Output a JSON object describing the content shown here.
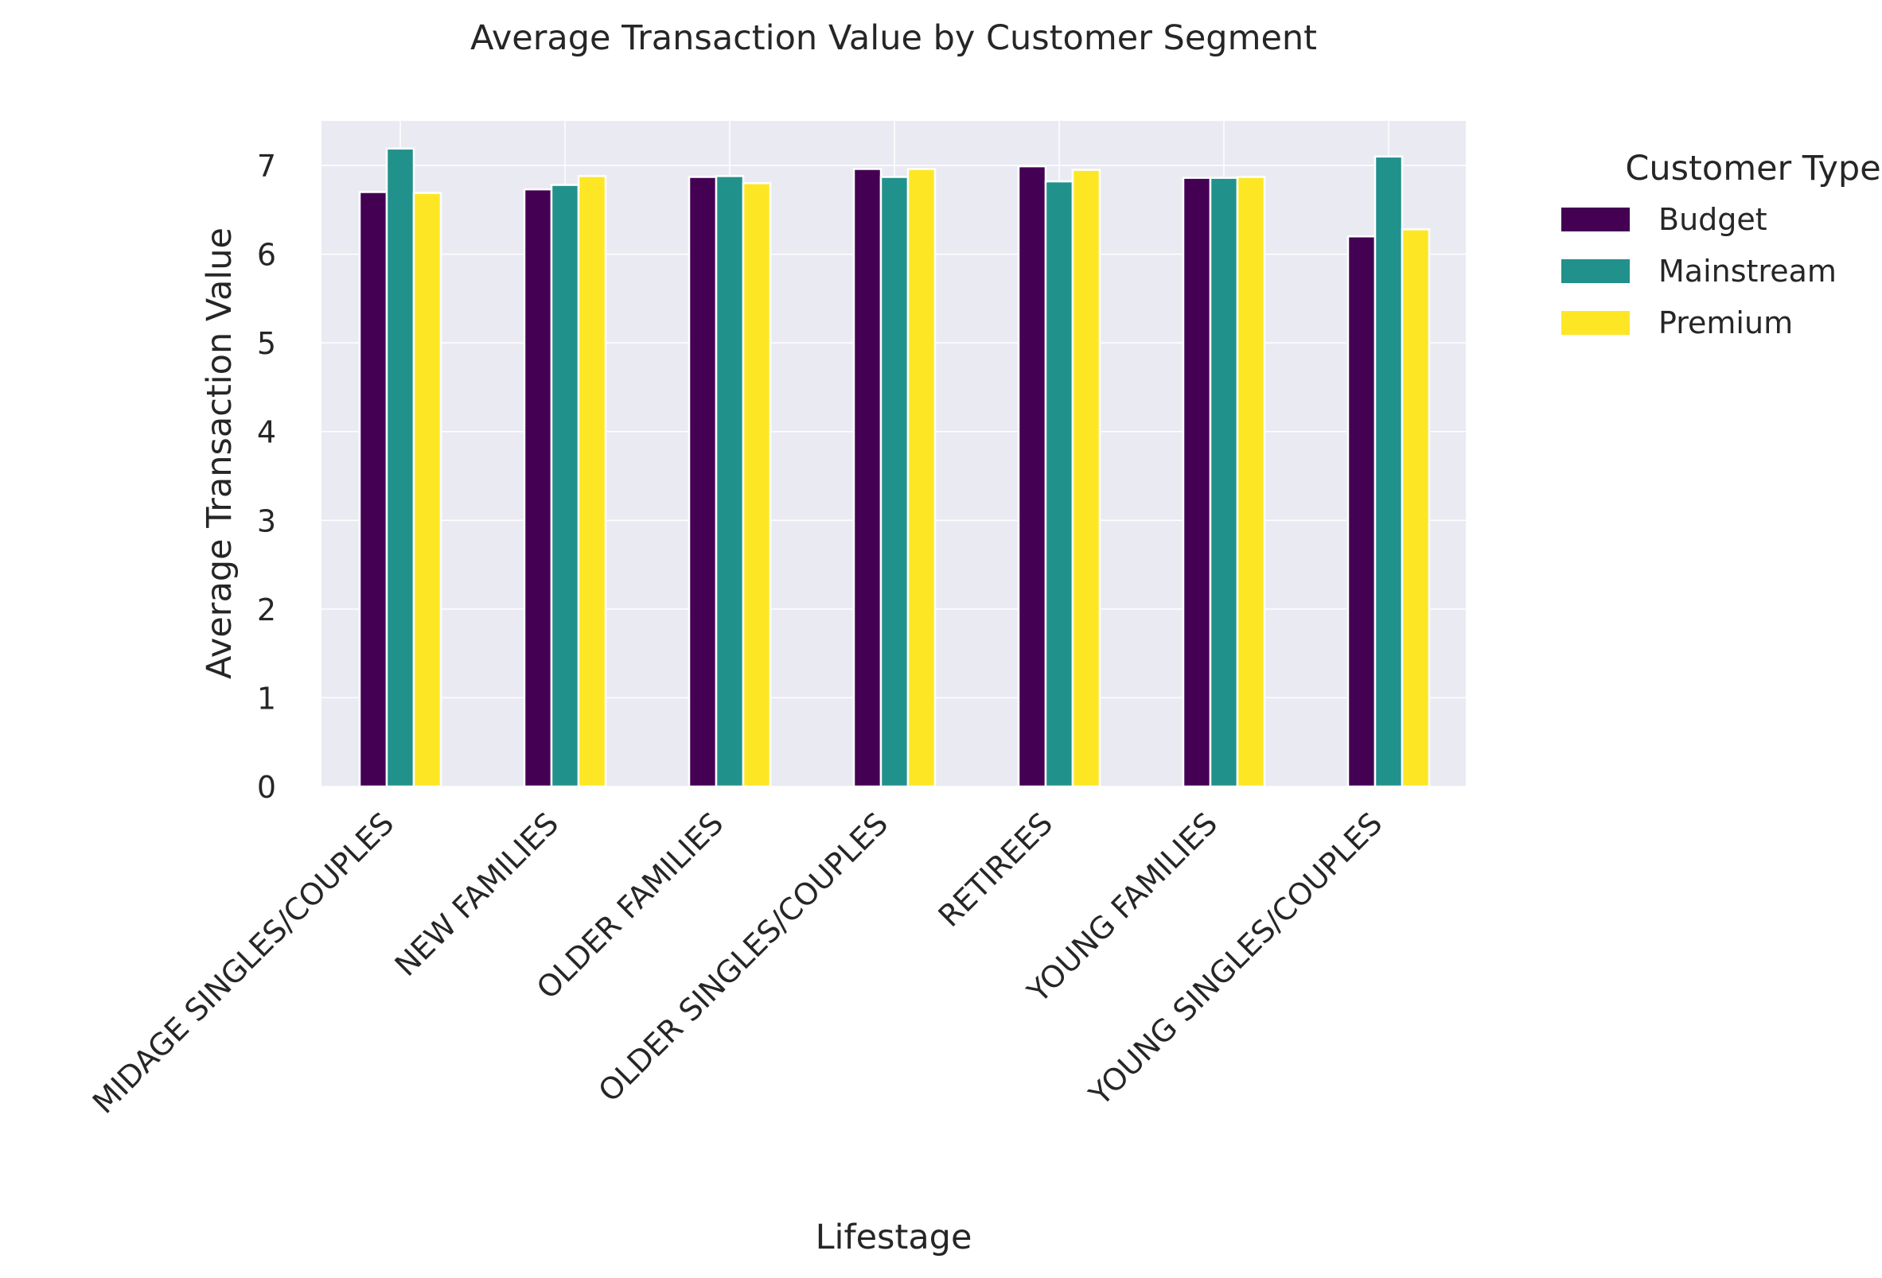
{
  "chart_data": {
    "type": "bar",
    "title": "Average Transaction Value by Customer Segment",
    "xlabel": "Lifestage",
    "ylabel": "Average Transaction Value",
    "categories": [
      "MIDAGE SINGLES/COUPLES",
      "NEW FAMILIES",
      "OLDER FAMILIES",
      "OLDER SINGLES/COUPLES",
      "RETIREES",
      "YOUNG FAMILIES",
      "YOUNG SINGLES/COUPLES"
    ],
    "series": [
      {
        "name": "Budget",
        "color": "#440154",
        "values": [
          6.7,
          6.73,
          6.87,
          6.96,
          6.99,
          6.86,
          6.2
        ]
      },
      {
        "name": "Mainstream",
        "color": "#21918c",
        "values": [
          7.19,
          6.78,
          6.88,
          6.87,
          6.82,
          6.86,
          7.1
        ]
      },
      {
        "name": "Premium",
        "color": "#fde725",
        "values": [
          6.69,
          6.88,
          6.8,
          6.96,
          6.95,
          6.87,
          6.28
        ]
      }
    ],
    "legend_title": "Customer Type",
    "legend_position": "outside-right",
    "yticks": [
      0,
      1,
      2,
      3,
      4,
      5,
      6,
      7
    ],
    "ylim": [
      0,
      7.5
    ],
    "grid": true,
    "background_color": "#eaeaf2"
  }
}
